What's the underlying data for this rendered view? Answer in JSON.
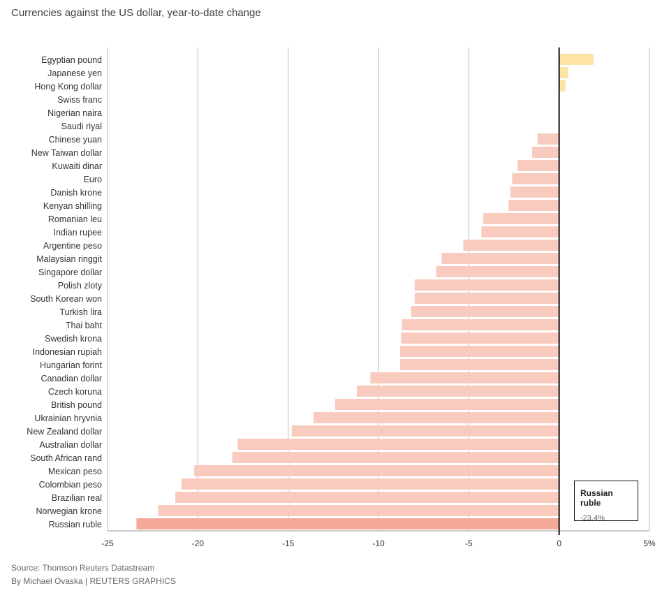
{
  "title": "Currencies against the US dollar, year-to-date change",
  "footer": {
    "source": "Source: Thomson Reuters Datastream",
    "credit": "By Michael Ovaska | REUTERS GRAPHICS"
  },
  "tooltip": {
    "name": "Russian ruble",
    "value": "-23.4%"
  },
  "colors": {
    "positive": "#fde3a4",
    "negative": "#f9cbbe",
    "highlight": "#f5a898",
    "zero_line": "#111111",
    "grid": "#bbbbbb"
  },
  "chart_data": {
    "type": "bar",
    "orientation": "horizontal",
    "title": "Currencies against the US dollar, year-to-date change",
    "xlabel": "",
    "ylabel": "",
    "xlim": [
      -25,
      5
    ],
    "xticks": [
      -25,
      -20,
      -15,
      -10,
      -5,
      0,
      5
    ],
    "xtick_labels": [
      "-25",
      "-20",
      "-15",
      "-10",
      "-5",
      "0",
      "5%"
    ],
    "grid": true,
    "highlighted": "Russian ruble",
    "categories": [
      "Egyptian pound",
      "Japanese yen",
      "Hong Kong dollar",
      "Swiss franc",
      "Nigerian naira",
      "Saudi riyal",
      "Chinese yuan",
      "New Taiwan dollar",
      "Kuwaiti dinar",
      "Euro",
      "Danish krone",
      "Kenyan shilling",
      "Romanian leu",
      "Indian rupee",
      "Argentine peso",
      "Malaysian ringgit",
      "Singapore dollar",
      "Polish zloty",
      "South Korean won",
      "Turkish lira",
      "Thai baht",
      "Swedish krona",
      "Indonesian rupiah",
      "Hungarian forint",
      "Canadian dollar",
      "Czech koruna",
      "British pound",
      "Ukrainian hryvnia",
      "New Zealand dollar",
      "Australian dollar",
      "South African rand",
      "Mexican peso",
      "Colombian peso",
      "Brazilian real",
      "Norwegian krone",
      "Russian ruble"
    ],
    "values": [
      1.9,
      0.5,
      0.35,
      0.0,
      0.0,
      0.0,
      -1.2,
      -1.5,
      -2.3,
      -2.6,
      -2.7,
      -2.8,
      -4.2,
      -4.3,
      -5.3,
      -6.5,
      -6.8,
      -8.0,
      -8.0,
      -8.2,
      -8.7,
      -8.75,
      -8.8,
      -8.8,
      -10.45,
      -11.2,
      -12.4,
      -13.6,
      -14.8,
      -17.8,
      -18.1,
      -20.2,
      -20.9,
      -21.25,
      -22.2,
      -23.4
    ]
  }
}
